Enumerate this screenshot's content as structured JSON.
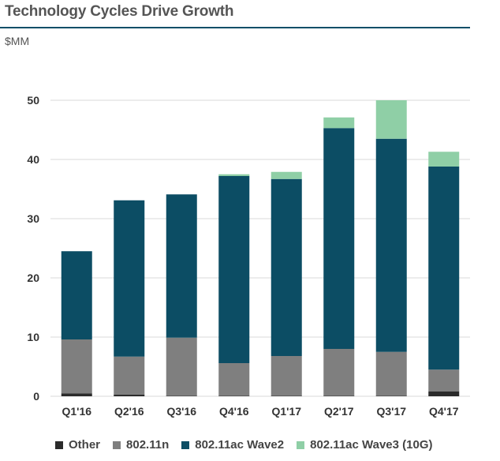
{
  "header": {
    "title": "Technology Cycles Drive Growth",
    "unit": "$MM"
  },
  "colors": {
    "title_rule": "#0f4f68",
    "gridline": "#d9d9d9",
    "axis_text": "#333333"
  },
  "chart_data": {
    "type": "bar",
    "stacked": true,
    "title": "Technology Cycles Drive Growth",
    "ylabel": "$MM",
    "xlabel": "",
    "ylim": [
      0,
      50
    ],
    "yticks": [
      0,
      10,
      20,
      30,
      40,
      50
    ],
    "grid": true,
    "legend_position": "bottom",
    "categories": [
      "Q1'16",
      "Q2'16",
      "Q3'16",
      "Q4'16",
      "Q1'17",
      "Q2'17",
      "Q3'17",
      "Q4'17"
    ],
    "series": [
      {
        "name": "Other",
        "color": "#2b2b2b",
        "values": [
          0.5,
          0.3,
          0.1,
          0.1,
          0.1,
          0.1,
          0.1,
          0.8
        ]
      },
      {
        "name": "802.11n",
        "color": "#7f7f7f",
        "values": [
          9.1,
          6.4,
          9.8,
          5.5,
          6.7,
          7.9,
          7.4,
          3.7
        ]
      },
      {
        "name": "802.11ac Wave2",
        "color": "#0c4d64",
        "values": [
          14.9,
          26.4,
          24.2,
          31.6,
          29.9,
          37.3,
          36.0,
          34.3
        ]
      },
      {
        "name": "802.11ac Wave3 (10G)",
        "color": "#8fcfa6",
        "values": [
          0.0,
          0.0,
          0.0,
          0.3,
          1.2,
          1.8,
          6.5,
          2.5
        ]
      }
    ]
  }
}
